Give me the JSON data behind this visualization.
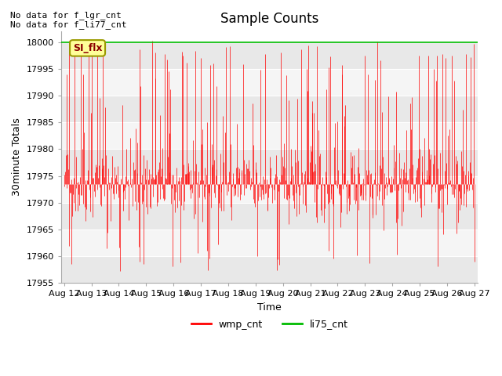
{
  "title": "Sample Counts",
  "xlabel": "Time",
  "ylabel": "30minute Totals",
  "ylim": [
    17955,
    18002
  ],
  "yticks": [
    17955,
    17960,
    17965,
    17970,
    17975,
    17980,
    17985,
    17990,
    17995,
    18000
  ],
  "xtick_labels": [
    "Aug 12",
    "Aug 13",
    "Aug 14",
    "Aug 15",
    "Aug 16",
    "Aug 17",
    "Aug 18",
    "Aug 19",
    "Aug 20",
    "Aug 21",
    "Aug 22",
    "Aug 23",
    "Aug 24",
    "Aug 25",
    "Aug 26",
    "Aug 27"
  ],
  "no_data_texts": [
    "No data for f_lgr_cnt",
    "No data for f_li77_cnt"
  ],
  "annotation_box_text": "SI_flx",
  "annotation_box_color": "#ffff99",
  "wmp_color": "#ff0000",
  "li75_color": "#00bb00",
  "li75_value": 18000,
  "wmp_mean": 17973.5,
  "wmp_std": 3.5,
  "background_color": "#ffffff",
  "band_color_dark": "#e8e8e8",
  "band_color_light": "#f5f5f5",
  "num_points": 700,
  "seed": 42,
  "title_fontsize": 12,
  "axis_label_fontsize": 9,
  "tick_fontsize": 8
}
